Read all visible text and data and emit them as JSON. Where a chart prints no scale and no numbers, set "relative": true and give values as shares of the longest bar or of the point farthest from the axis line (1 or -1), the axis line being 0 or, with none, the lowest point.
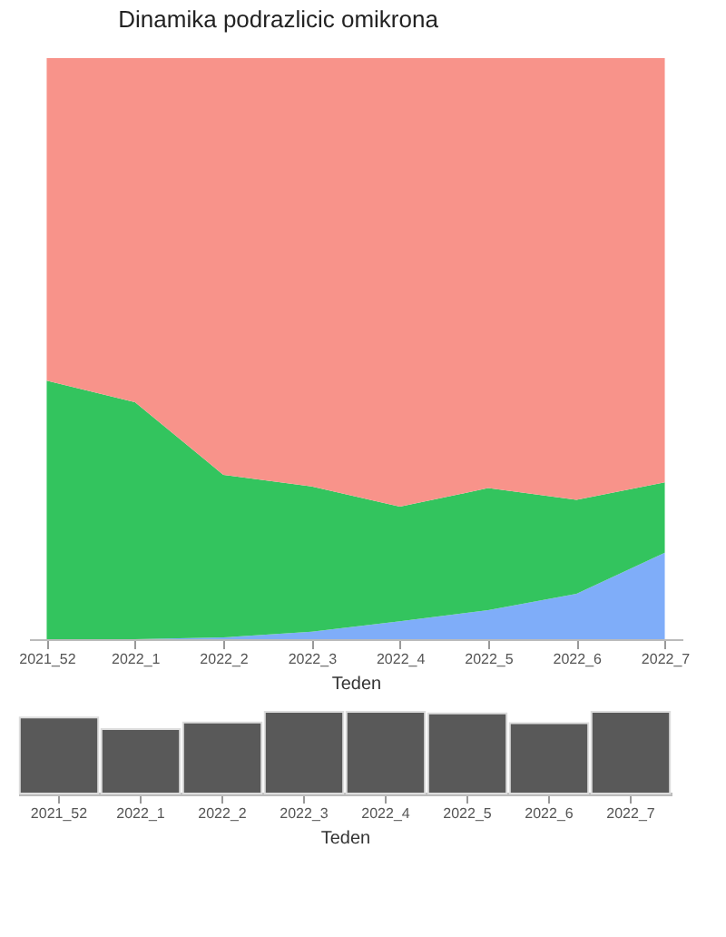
{
  "chart_data": [
    {
      "type": "area",
      "title": "Dinamika podrazlicic omikrona",
      "xlabel": "Teden",
      "relative": true,
      "stacked": true,
      "categories": [
        "2021_52",
        "2022_1",
        "2022_2",
        "2022_3",
        "2022_4",
        "2022_5",
        "2022_6",
        "2022_7"
      ],
      "series": [
        {
          "color": "#7fadf9",
          "values": [
            0,
            0,
            0.003,
            0.013,
            0.031,
            0.05,
            0.078,
            0.149
          ]
        },
        {
          "color": "#33c45e",
          "values": [
            0.445,
            0.408,
            0.28,
            0.25,
            0.197,
            0.21,
            0.162,
            0.121
          ]
        },
        {
          "color": "#f8938a",
          "values": [
            0.555,
            0.592,
            0.717,
            0.737,
            0.772,
            0.74,
            0.76,
            0.73
          ]
        }
      ]
    },
    {
      "type": "bar",
      "xlabel": "Teden",
      "relative": true,
      "color": "#595959",
      "categories": [
        "2021_52",
        "2022_1",
        "2022_2",
        "2022_3",
        "2022_4",
        "2022_5",
        "2022_6",
        "2022_7"
      ],
      "values": [
        0.93,
        0.79,
        0.87,
        1,
        1,
        0.98,
        0.86,
        1
      ]
    }
  ]
}
